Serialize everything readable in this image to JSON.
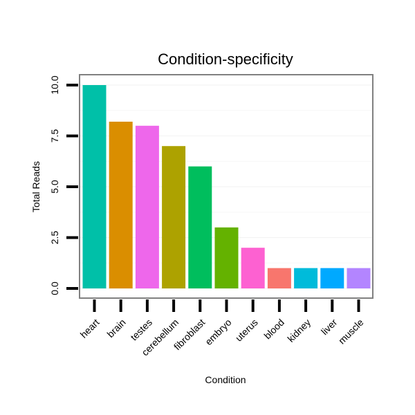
{
  "chart_data": {
    "type": "bar",
    "title": "Condition-specificity",
    "xlabel": "Condition",
    "ylabel": "Total Reads",
    "ylim": [
      0,
      10.5
    ],
    "yticks": [
      0,
      2.5,
      5,
      7.5,
      10
    ],
    "ytick_labels": [
      "0.0",
      "2.5",
      "5.0",
      "7.5",
      "10.0"
    ],
    "grid": true,
    "categories": [
      "heart",
      "brain",
      "testes",
      "cerebellum",
      "fibroblast",
      "embryo",
      "uterus",
      "blood",
      "kidney",
      "liver",
      "muscle"
    ],
    "values": [
      10,
      8.2,
      8,
      7,
      6,
      3,
      2,
      1,
      1,
      1,
      1
    ],
    "colors": [
      "#00C0A8",
      "#DA8E00",
      "#EE67EB",
      "#ADA200",
      "#00BE5D",
      "#64B200",
      "#FD61D1",
      "#F8766D",
      "#00BBDA",
      "#00A9FF",
      "#B385FF"
    ]
  }
}
